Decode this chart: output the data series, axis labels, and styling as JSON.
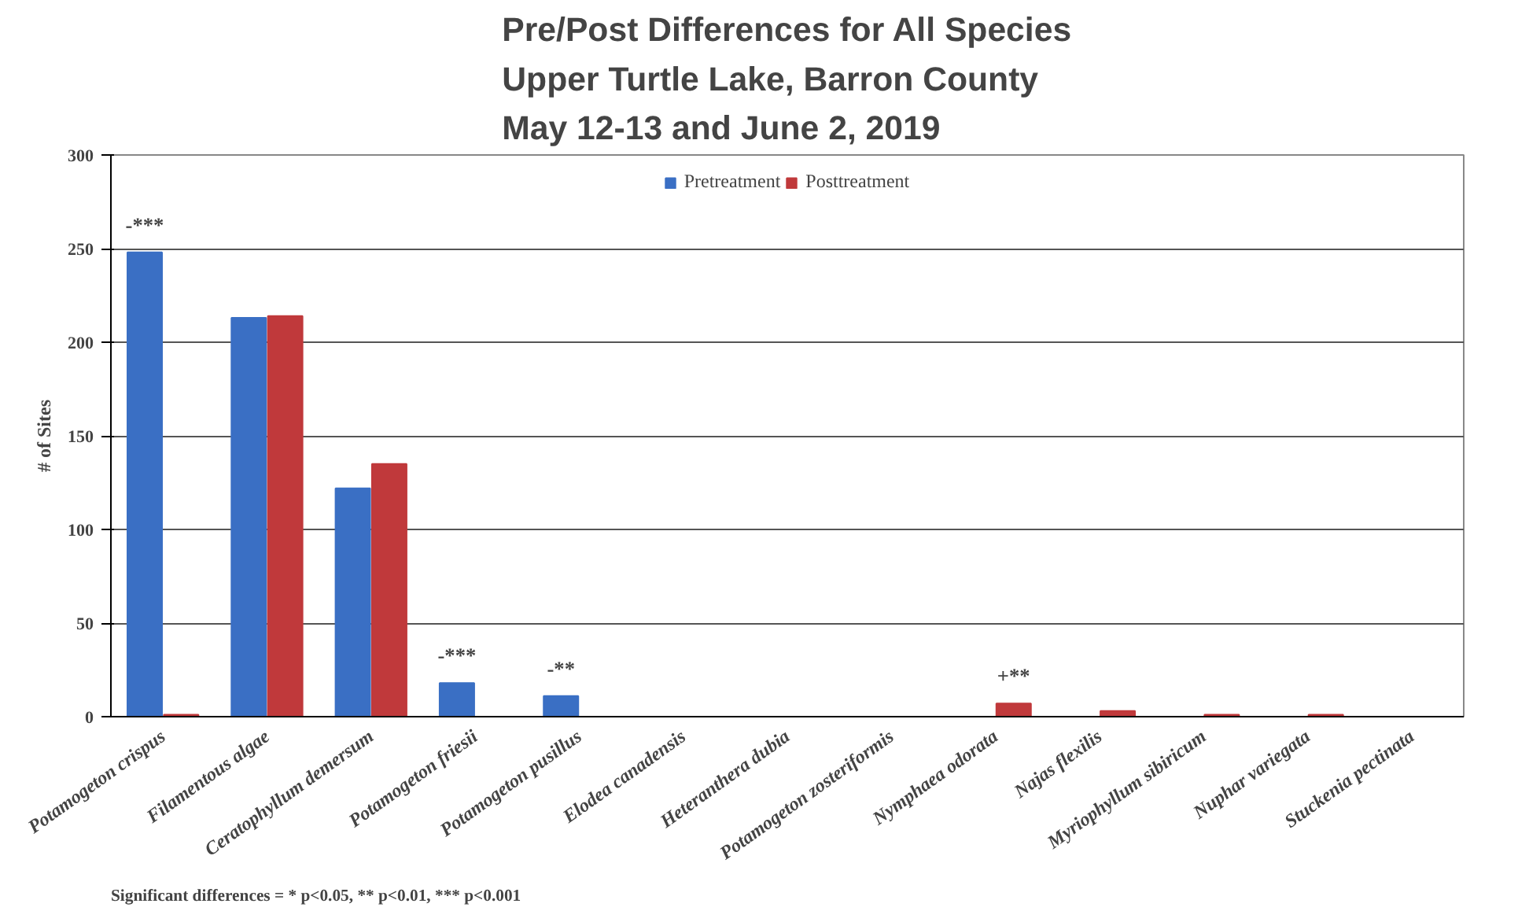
{
  "chart_data": {
    "type": "bar",
    "title": "Pre/Post Differences for All Species\nUpper Turtle Lake, Barron County\nMay 12-13 and June 2, 2019",
    "ylabel": "# of Sites",
    "categories": [
      "Potamogeton crispus",
      "Filamentous algae",
      "Ceratophyllum demersum",
      "Potamogeton friesii",
      "Potamogeton pusillus",
      "Elodea canadensis",
      "Heteranthera dubia",
      "Potamogeton zosteriformis",
      "Nymphaea odorata",
      "Najas flexilis",
      "Myriophyllum sibiricum",
      "Nuphar variegata",
      "Stuckenia pectinata"
    ],
    "series": [
      {
        "name": "Pretreatment",
        "color": "#3a6fc4",
        "values": [
          248,
          213,
          122,
          18,
          11,
          0,
          0,
          0,
          0,
          0,
          0,
          0,
          0
        ]
      },
      {
        "name": "Posttreatment",
        "color": "#c0393b",
        "values": [
          1,
          214,
          135,
          0,
          0,
          0,
          0,
          0,
          7,
          3,
          1,
          1,
          0
        ]
      }
    ],
    "ylim": [
      0,
      300
    ],
    "yticks": [
      0,
      50,
      100,
      150,
      200,
      250,
      300
    ],
    "grid": "y",
    "legend": "top",
    "annotations": [
      {
        "text": "-***",
        "x": "Potamogeton crispus",
        "y": 248
      },
      {
        "text": "-***",
        "x": "Potamogeton friesii",
        "y": 18
      },
      {
        "text": "-**",
        "x": "Potamogeton pusillus",
        "y": 11
      },
      {
        "text": "+**",
        "x": "Nymphaea odorata",
        "y": 7
      },
      "Significant differences = * p<0.05, ** p<0.01, *** p<0.001"
    ]
  }
}
